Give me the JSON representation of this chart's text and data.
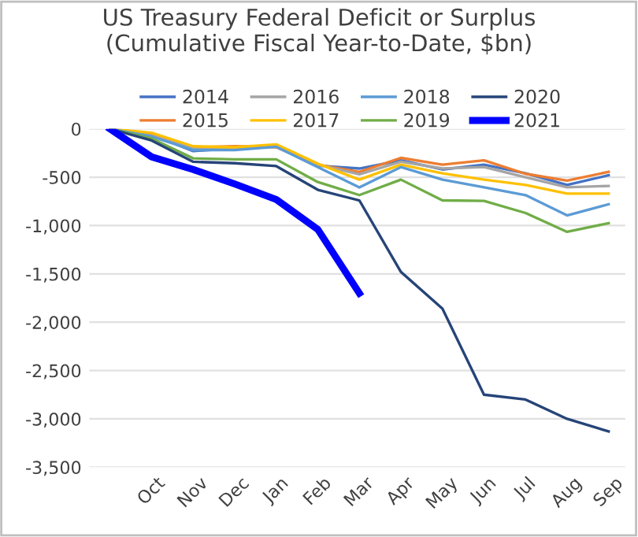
{
  "chart_data": {
    "type": "line",
    "title": "US Treasury Federal Deficit or Surplus\n(Cumulative Fiscal Year-to-Date, $bn)",
    "categories": [
      null,
      "Oct",
      "Nov",
      "Dec",
      "Jan",
      "Feb",
      "Mar",
      "Apr",
      "May",
      "Jun",
      "Jul",
      "Aug",
      "Sep"
    ],
    "series": [
      {
        "name": "2014",
        "color": "#4472c4",
        "values": [
          0,
          -60,
          -230,
          -200,
          -180,
          -380,
          -410,
          -325,
          -420,
          -370,
          -460,
          -580,
          -480
        ]
      },
      {
        "name": "2015",
        "color": "#ed7d31",
        "values": [
          0,
          -50,
          -190,
          -180,
          -190,
          -370,
          -445,
          -300,
          -370,
          -325,
          -465,
          -535,
          -445
        ]
      },
      {
        "name": "2016",
        "color": "#a5a5a5",
        "values": [
          0,
          -70,
          -200,
          -200,
          -170,
          -370,
          -470,
          -340,
          -410,
          -395,
          -500,
          -605,
          -590
        ]
      },
      {
        "name": "2017",
        "color": "#ffc000",
        "values": [
          0,
          -40,
          -180,
          -190,
          -160,
          -360,
          -525,
          -370,
          -460,
          -525,
          -580,
          -670,
          -670
        ]
      },
      {
        "name": "2018",
        "color": "#5b9bd5",
        "values": [
          0,
          -80,
          -220,
          -220,
          -185,
          -395,
          -605,
          -395,
          -525,
          -605,
          -685,
          -895,
          -780
        ]
      },
      {
        "name": "2019",
        "color": "#70ad47",
        "values": [
          0,
          -100,
          -305,
          -315,
          -315,
          -550,
          -685,
          -525,
          -740,
          -745,
          -870,
          -1065,
          -975
        ]
      },
      {
        "name": "2020",
        "color": "#264478",
        "values": [
          0,
          -120,
          -340,
          -355,
          -385,
          -630,
          -740,
          -1480,
          -1860,
          -2750,
          -2800,
          -3000,
          -3130
        ]
      },
      {
        "name": "2021",
        "color": "#0000ff",
        "values": [
          0,
          -290,
          -420,
          -570,
          -730,
          -1040,
          -1700,
          null,
          null,
          null,
          null,
          null,
          null
        ]
      }
    ],
    "ylim": [
      -3500,
      0
    ],
    "yticks": [
      {
        "value": -3500,
        "label": "-3,500"
      },
      {
        "value": -3000,
        "label": "-3,000"
      },
      {
        "value": -2500,
        "label": "-2,500"
      },
      {
        "value": -2000,
        "label": "-2,000"
      },
      {
        "value": -1500,
        "label": "-1,500"
      },
      {
        "value": -1000,
        "label": "-1,000"
      },
      {
        "value": -500,
        "label": "-500"
      },
      0
    ],
    "grid": "y",
    "legend": "top",
    "marker": "none",
    "line_style": "solid"
  }
}
